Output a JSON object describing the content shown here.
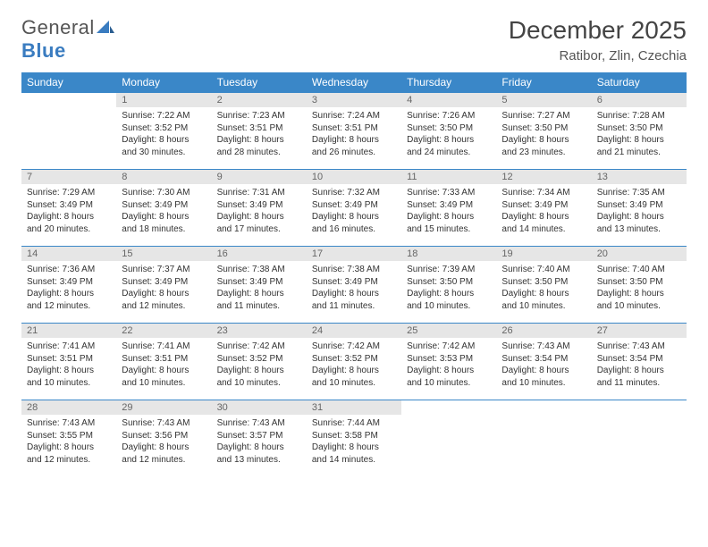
{
  "logo": {
    "word1": "General",
    "word2": "Blue"
  },
  "header": {
    "title": "December 2025",
    "location": "Ratibor, Zlin, Czechia"
  },
  "colors": {
    "header_bg": "#3a87c8",
    "header_fg": "#ffffff",
    "daynum_bg": "#e6e6e6",
    "daynum_fg": "#666666",
    "rule": "#3a87c8",
    "logo_gray": "#555555",
    "logo_blue": "#3a7cc0"
  },
  "weekdays": [
    "Sunday",
    "Monday",
    "Tuesday",
    "Wednesday",
    "Thursday",
    "Friday",
    "Saturday"
  ],
  "weeks": [
    [
      {
        "empty": true
      },
      {
        "day": "1",
        "sunrise": "Sunrise: 7:22 AM",
        "sunset": "Sunset: 3:52 PM",
        "d1": "Daylight: 8 hours",
        "d2": "and 30 minutes."
      },
      {
        "day": "2",
        "sunrise": "Sunrise: 7:23 AM",
        "sunset": "Sunset: 3:51 PM",
        "d1": "Daylight: 8 hours",
        "d2": "and 28 minutes."
      },
      {
        "day": "3",
        "sunrise": "Sunrise: 7:24 AM",
        "sunset": "Sunset: 3:51 PM",
        "d1": "Daylight: 8 hours",
        "d2": "and 26 minutes."
      },
      {
        "day": "4",
        "sunrise": "Sunrise: 7:26 AM",
        "sunset": "Sunset: 3:50 PM",
        "d1": "Daylight: 8 hours",
        "d2": "and 24 minutes."
      },
      {
        "day": "5",
        "sunrise": "Sunrise: 7:27 AM",
        "sunset": "Sunset: 3:50 PM",
        "d1": "Daylight: 8 hours",
        "d2": "and 23 minutes."
      },
      {
        "day": "6",
        "sunrise": "Sunrise: 7:28 AM",
        "sunset": "Sunset: 3:50 PM",
        "d1": "Daylight: 8 hours",
        "d2": "and 21 minutes."
      }
    ],
    [
      {
        "day": "7",
        "sunrise": "Sunrise: 7:29 AM",
        "sunset": "Sunset: 3:49 PM",
        "d1": "Daylight: 8 hours",
        "d2": "and 20 minutes."
      },
      {
        "day": "8",
        "sunrise": "Sunrise: 7:30 AM",
        "sunset": "Sunset: 3:49 PM",
        "d1": "Daylight: 8 hours",
        "d2": "and 18 minutes."
      },
      {
        "day": "9",
        "sunrise": "Sunrise: 7:31 AM",
        "sunset": "Sunset: 3:49 PM",
        "d1": "Daylight: 8 hours",
        "d2": "and 17 minutes."
      },
      {
        "day": "10",
        "sunrise": "Sunrise: 7:32 AM",
        "sunset": "Sunset: 3:49 PM",
        "d1": "Daylight: 8 hours",
        "d2": "and 16 minutes."
      },
      {
        "day": "11",
        "sunrise": "Sunrise: 7:33 AM",
        "sunset": "Sunset: 3:49 PM",
        "d1": "Daylight: 8 hours",
        "d2": "and 15 minutes."
      },
      {
        "day": "12",
        "sunrise": "Sunrise: 7:34 AM",
        "sunset": "Sunset: 3:49 PM",
        "d1": "Daylight: 8 hours",
        "d2": "and 14 minutes."
      },
      {
        "day": "13",
        "sunrise": "Sunrise: 7:35 AM",
        "sunset": "Sunset: 3:49 PM",
        "d1": "Daylight: 8 hours",
        "d2": "and 13 minutes."
      }
    ],
    [
      {
        "day": "14",
        "sunrise": "Sunrise: 7:36 AM",
        "sunset": "Sunset: 3:49 PM",
        "d1": "Daylight: 8 hours",
        "d2": "and 12 minutes."
      },
      {
        "day": "15",
        "sunrise": "Sunrise: 7:37 AM",
        "sunset": "Sunset: 3:49 PM",
        "d1": "Daylight: 8 hours",
        "d2": "and 12 minutes."
      },
      {
        "day": "16",
        "sunrise": "Sunrise: 7:38 AM",
        "sunset": "Sunset: 3:49 PM",
        "d1": "Daylight: 8 hours",
        "d2": "and 11 minutes."
      },
      {
        "day": "17",
        "sunrise": "Sunrise: 7:38 AM",
        "sunset": "Sunset: 3:49 PM",
        "d1": "Daylight: 8 hours",
        "d2": "and 11 minutes."
      },
      {
        "day": "18",
        "sunrise": "Sunrise: 7:39 AM",
        "sunset": "Sunset: 3:50 PM",
        "d1": "Daylight: 8 hours",
        "d2": "and 10 minutes."
      },
      {
        "day": "19",
        "sunrise": "Sunrise: 7:40 AM",
        "sunset": "Sunset: 3:50 PM",
        "d1": "Daylight: 8 hours",
        "d2": "and 10 minutes."
      },
      {
        "day": "20",
        "sunrise": "Sunrise: 7:40 AM",
        "sunset": "Sunset: 3:50 PM",
        "d1": "Daylight: 8 hours",
        "d2": "and 10 minutes."
      }
    ],
    [
      {
        "day": "21",
        "sunrise": "Sunrise: 7:41 AM",
        "sunset": "Sunset: 3:51 PM",
        "d1": "Daylight: 8 hours",
        "d2": "and 10 minutes."
      },
      {
        "day": "22",
        "sunrise": "Sunrise: 7:41 AM",
        "sunset": "Sunset: 3:51 PM",
        "d1": "Daylight: 8 hours",
        "d2": "and 10 minutes."
      },
      {
        "day": "23",
        "sunrise": "Sunrise: 7:42 AM",
        "sunset": "Sunset: 3:52 PM",
        "d1": "Daylight: 8 hours",
        "d2": "and 10 minutes."
      },
      {
        "day": "24",
        "sunrise": "Sunrise: 7:42 AM",
        "sunset": "Sunset: 3:52 PM",
        "d1": "Daylight: 8 hours",
        "d2": "and 10 minutes."
      },
      {
        "day": "25",
        "sunrise": "Sunrise: 7:42 AM",
        "sunset": "Sunset: 3:53 PM",
        "d1": "Daylight: 8 hours",
        "d2": "and 10 minutes."
      },
      {
        "day": "26",
        "sunrise": "Sunrise: 7:43 AM",
        "sunset": "Sunset: 3:54 PM",
        "d1": "Daylight: 8 hours",
        "d2": "and 10 minutes."
      },
      {
        "day": "27",
        "sunrise": "Sunrise: 7:43 AM",
        "sunset": "Sunset: 3:54 PM",
        "d1": "Daylight: 8 hours",
        "d2": "and 11 minutes."
      }
    ],
    [
      {
        "day": "28",
        "sunrise": "Sunrise: 7:43 AM",
        "sunset": "Sunset: 3:55 PM",
        "d1": "Daylight: 8 hours",
        "d2": "and 12 minutes."
      },
      {
        "day": "29",
        "sunrise": "Sunrise: 7:43 AM",
        "sunset": "Sunset: 3:56 PM",
        "d1": "Daylight: 8 hours",
        "d2": "and 12 minutes."
      },
      {
        "day": "30",
        "sunrise": "Sunrise: 7:43 AM",
        "sunset": "Sunset: 3:57 PM",
        "d1": "Daylight: 8 hours",
        "d2": "and 13 minutes."
      },
      {
        "day": "31",
        "sunrise": "Sunrise: 7:44 AM",
        "sunset": "Sunset: 3:58 PM",
        "d1": "Daylight: 8 hours",
        "d2": "and 14 minutes."
      },
      {
        "empty": true
      },
      {
        "empty": true
      },
      {
        "empty": true
      }
    ]
  ]
}
